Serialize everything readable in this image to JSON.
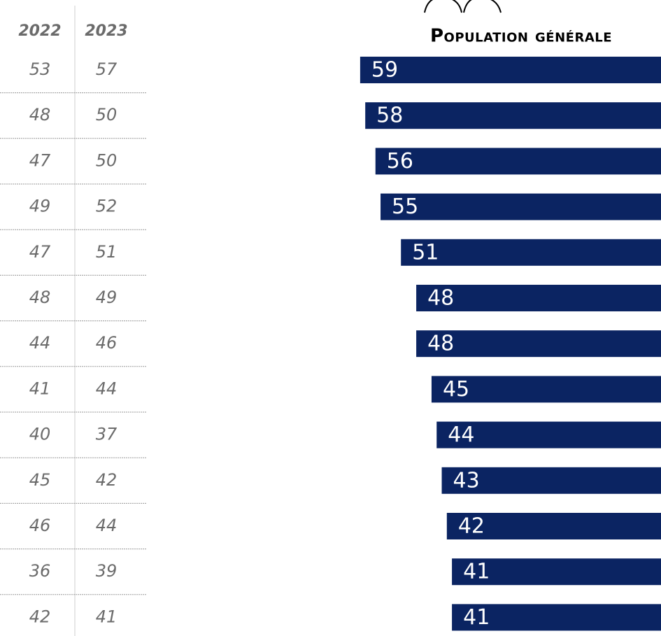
{
  "table": {
    "columns": [
      "2022",
      "2023"
    ],
    "rows": [
      [
        53,
        57
      ],
      [
        48,
        50
      ],
      [
        47,
        50
      ],
      [
        49,
        52
      ],
      [
        47,
        51
      ],
      [
        48,
        49
      ],
      [
        44,
        46
      ],
      [
        41,
        44
      ],
      [
        40,
        37
      ],
      [
        45,
        42
      ],
      [
        46,
        44
      ],
      [
        36,
        39
      ],
      [
        42,
        41
      ]
    ]
  },
  "chart_data": {
    "type": "bar",
    "title": "Population générale",
    "color": "#0b2462",
    "values": [
      59,
      58,
      56,
      55,
      51,
      48,
      48,
      45,
      44,
      43,
      42,
      41,
      41
    ]
  }
}
